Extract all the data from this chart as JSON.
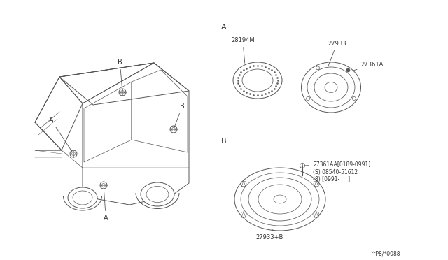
{
  "bg_color": "#ffffff",
  "line_color": "#555555",
  "text_color": "#333333",
  "parts": {
    "28194M": "28194M",
    "27933": "27933",
    "27361A": "27361A",
    "27361AA": "27361AA[0189-0991]",
    "08540": "(S) 08540-51612",
    "8_date": "(8) [0991-     ]",
    "27933B": "27933+B"
  },
  "section_A": "A",
  "section_B": "B",
  "footer": "^P8/*0088"
}
